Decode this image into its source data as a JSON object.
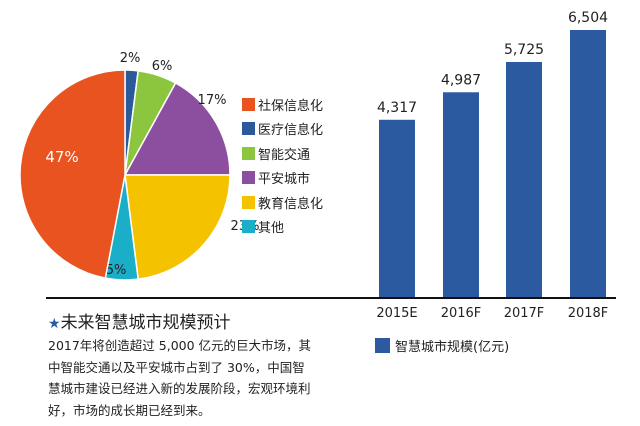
{
  "chart_data": [
    {
      "type": "pie",
      "start": "top",
      "direction": "clockwise",
      "slices": [
        {
          "label": "医疗信息化",
          "value": 2,
          "value_label": "2%",
          "color": "#2a5a9a"
        },
        {
          "label": "智能交通",
          "value": 6,
          "value_label": "6%",
          "color": "#8cc63f"
        },
        {
          "label": "平安城市",
          "value": 17,
          "value_label": "17%",
          "color": "#8c4f9f"
        },
        {
          "label": "教育信息化",
          "value": 23,
          "value_label": "23%",
          "color": "#f5c200"
        },
        {
          "label": "其他",
          "value": 5,
          "value_label": "5%",
          "color": "#1aaec8"
        },
        {
          "label": "社保信息化",
          "value": 47,
          "value_label": "47%",
          "color": "#e8531f"
        }
      ],
      "legend": [
        "社保信息化",
        "医疗信息化",
        "智能交通",
        "平安城市",
        "教育信息化",
        "其他"
      ],
      "legend_placement": "right"
    },
    {
      "type": "bar",
      "categories": [
        "2015E",
        "2016F",
        "2017F",
        "2018F"
      ],
      "values": [
        4317,
        4987,
        5725,
        6504
      ],
      "value_labels": [
        "4,317",
        "4,987",
        "5,725",
        "6,504"
      ],
      "series_name": "智慧城市规模(亿元)",
      "color": "#2c5aa0",
      "ylim": [
        0,
        6504
      ],
      "grid": false,
      "legend_placement": "bottom"
    }
  ],
  "caption": {
    "title": "未来智慧城市规模预计",
    "star": "★",
    "body": "2017年将创造超过 5,000 亿元的巨大市场，其中智能交通以及平安城市占到了 30%，中国智慧城市建设已经进入新的发展阶段，宏观环境利好，市场的成长期已经到来。"
  }
}
